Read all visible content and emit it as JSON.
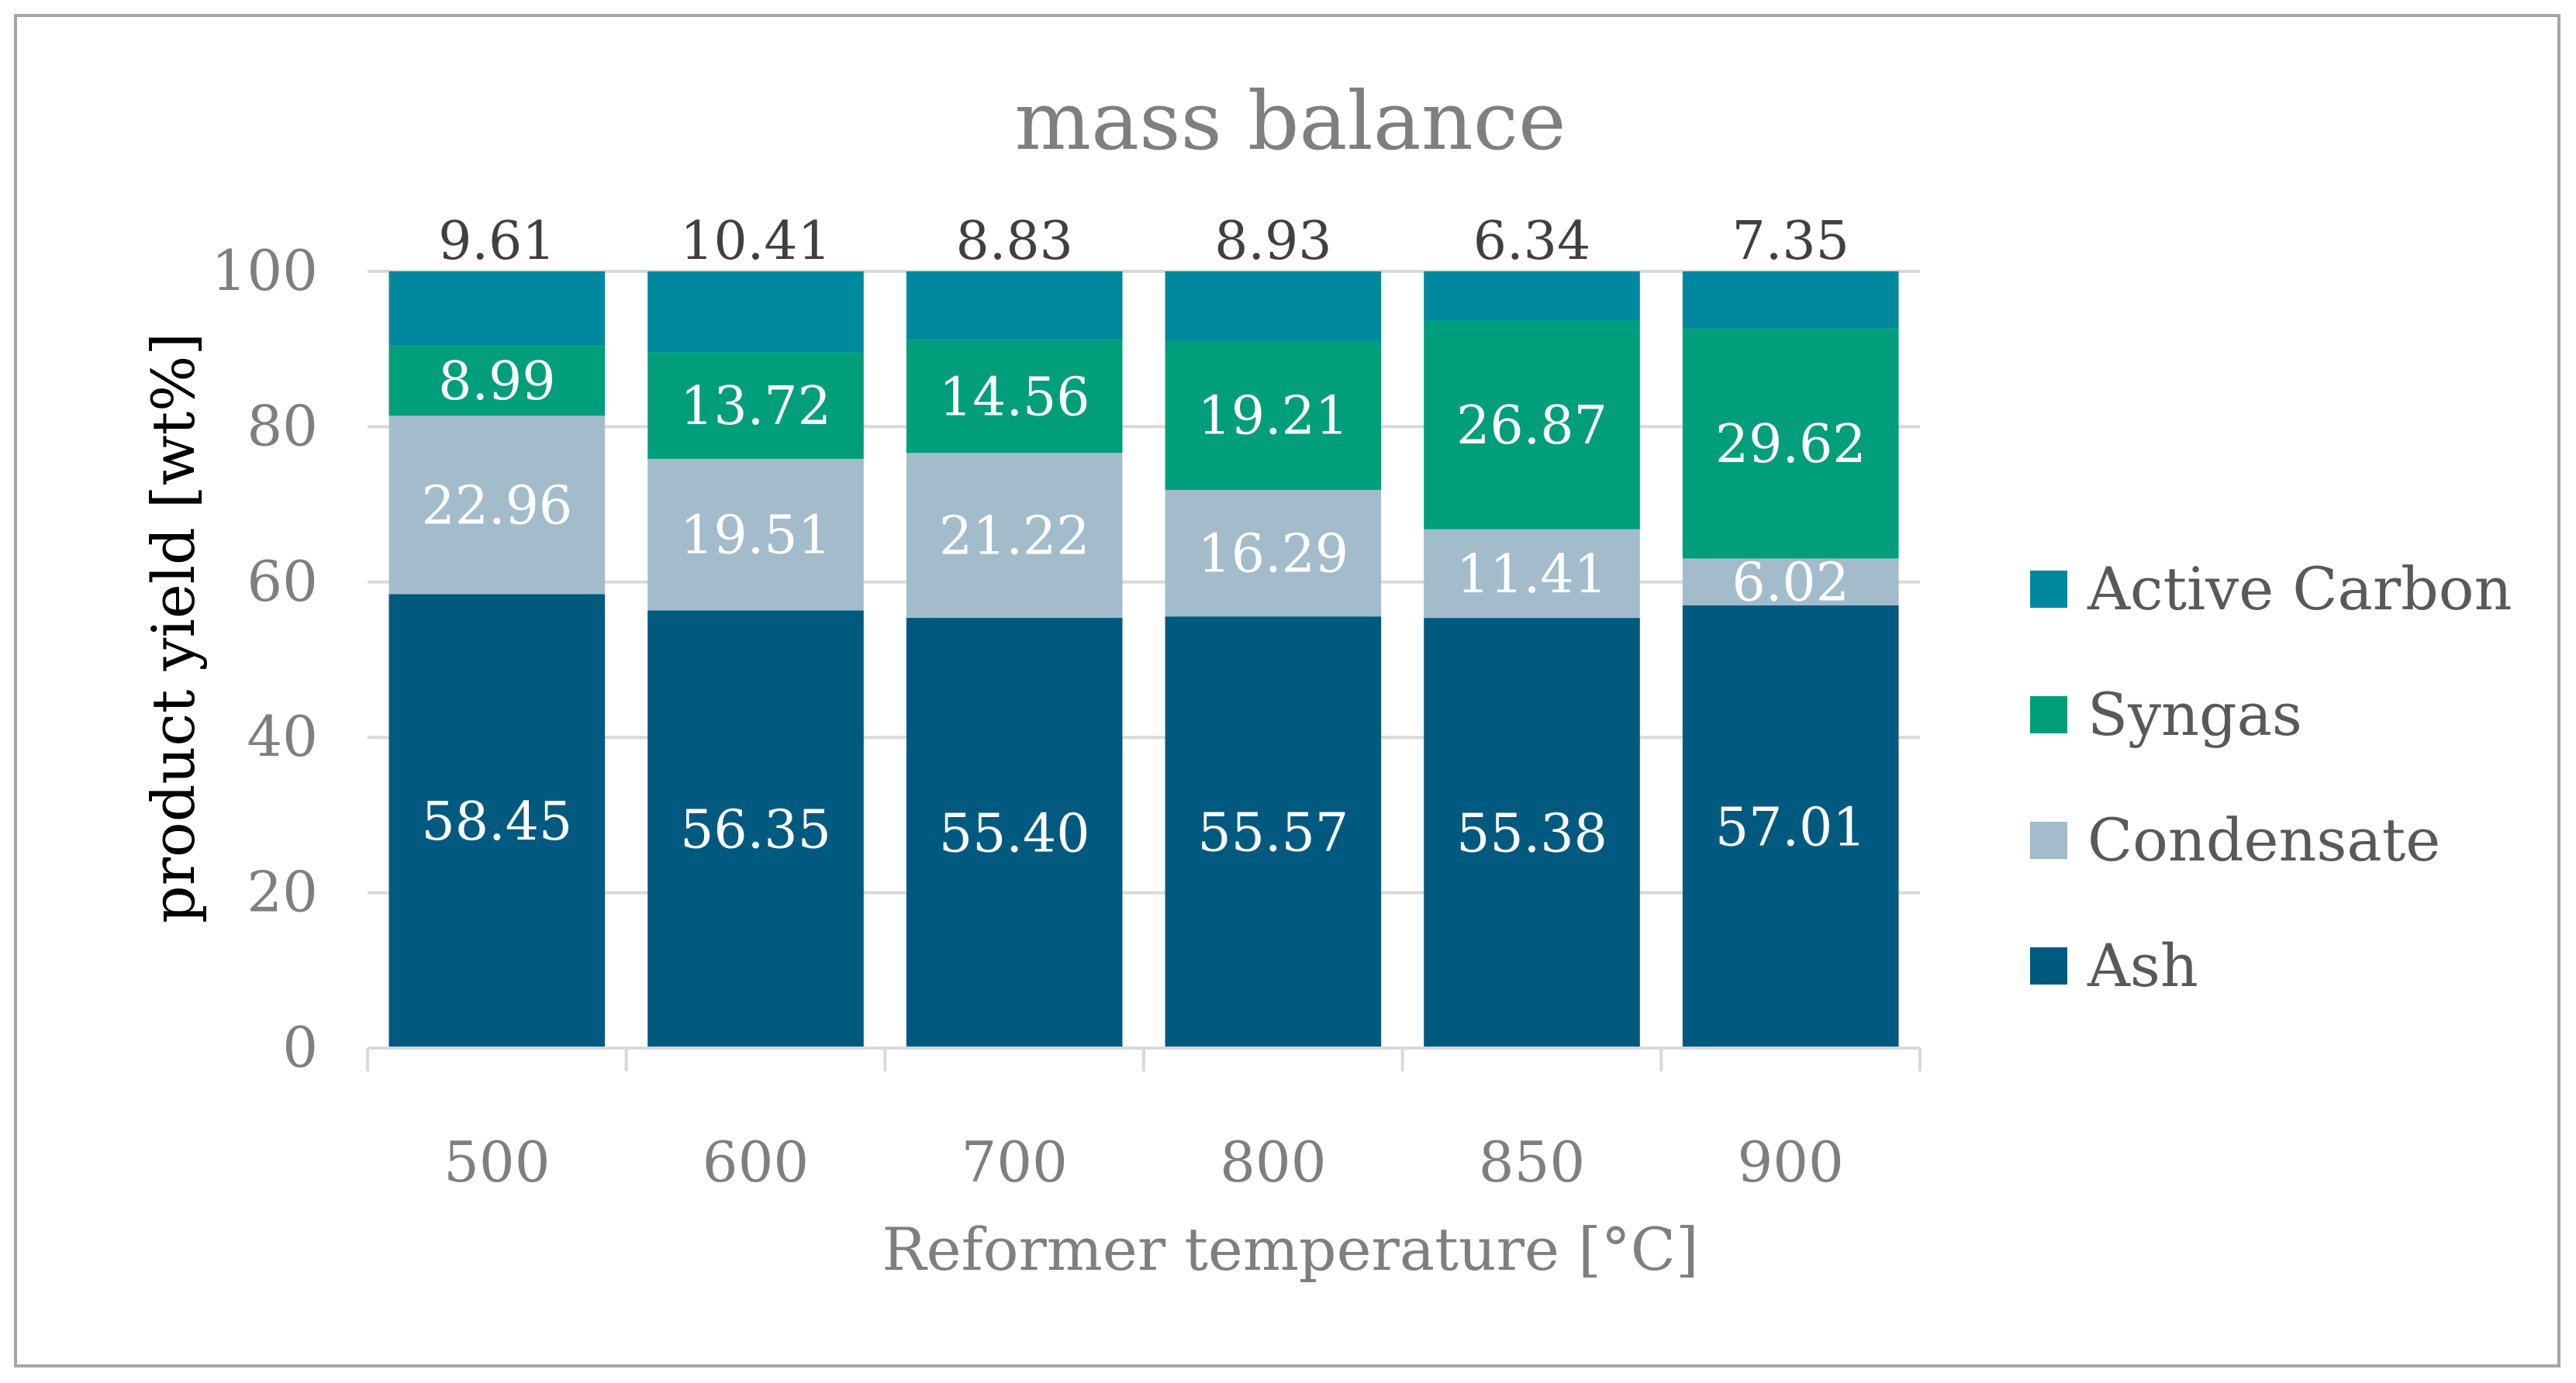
{
  "chart_data": {
    "type": "bar",
    "stacked": true,
    "title": "mass balance",
    "xlabel": "Reformer temperature [°C]",
    "ylabel": "product yield [wt%]",
    "ylim": [
      0,
      100
    ],
    "yticks": [
      0,
      20,
      40,
      60,
      80,
      100
    ],
    "ytick_labels": [
      "0",
      "20",
      "40",
      "60",
      "80",
      "100"
    ],
    "gridlines": true,
    "legend_position": "right",
    "categories": [
      "500",
      "600",
      "700",
      "800",
      "850",
      "900"
    ],
    "series": [
      {
        "name": "Ash",
        "color": "#005a80",
        "values": [
          58.45,
          56.35,
          55.4,
          55.57,
          55.38,
          57.01
        ],
        "labels": [
          "58.45",
          "56.35",
          "55.40",
          "55.57",
          "55.38",
          "57.01"
        ]
      },
      {
        "name": "Condensate",
        "color": "#a2bccb",
        "values": [
          22.96,
          19.51,
          21.22,
          16.29,
          11.41,
          6.02
        ],
        "labels": [
          "22.96",
          "19.51",
          "21.22",
          "16.29",
          "11.41",
          "6.02"
        ]
      },
      {
        "name": "Syngas",
        "color": "#009e7b",
        "values": [
          8.99,
          13.72,
          14.56,
          19.21,
          26.87,
          29.62
        ],
        "labels": [
          "8.99",
          "13.72",
          "14.56",
          "19.21",
          "26.87",
          "29.62"
        ]
      },
      {
        "name": "Active Carbon",
        "color": "#00889f",
        "values": [
          9.61,
          10.41,
          8.83,
          8.93,
          6.34,
          7.35
        ],
        "labels": [
          "9.61",
          "10.41",
          "8.83",
          "8.93",
          "6.34",
          "7.35"
        ]
      }
    ],
    "legend_order": [
      "Active Carbon",
      "Syngas",
      "Condensate",
      "Ash"
    ]
  }
}
